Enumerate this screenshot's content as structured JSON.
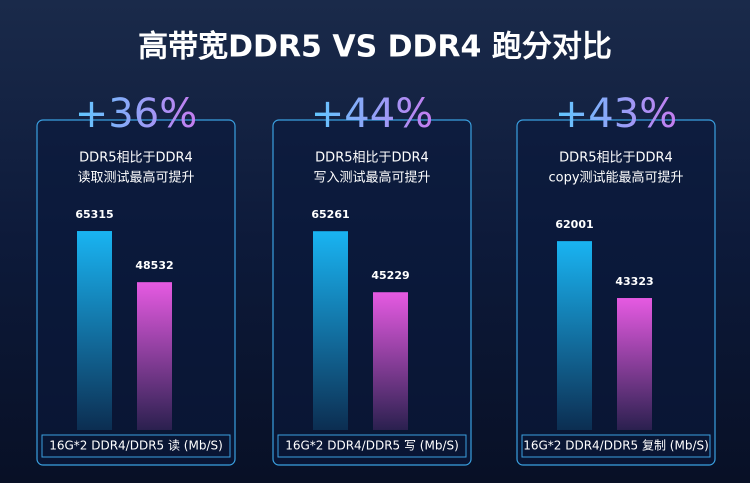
{
  "title": "高带宽DDR5 VS DDR4 跑分对比",
  "chart_data": [
    {
      "type": "bar",
      "headline": "+36%",
      "subtitle": [
        "DDR5相比于DDR4",
        "读取测试最高可提升"
      ],
      "footer": "16G*2 DDR4/DDR5 读 (Mb/S)",
      "values": [
        65315,
        48532
      ],
      "colors": [
        "#19b4f2",
        "#e65ae2"
      ]
    },
    {
      "type": "bar",
      "headline": "+44%",
      "subtitle": [
        "DDR5相比于DDR4",
        "写入测试最高可提升"
      ],
      "footer": "16G*2 DDR4/DDR5 写 (Mb/S)",
      "values": [
        65261,
        45229
      ],
      "colors": [
        "#19b4f2",
        "#e65ae2"
      ]
    },
    {
      "type": "bar",
      "headline": "+43%",
      "subtitle": [
        "DDR5相比于DDR4",
        "copy测试能最高可提升"
      ],
      "footer": "16G*2 DDR4/DDR5 复制 (Mb/S)",
      "values": [
        62001,
        43323
      ],
      "colors": [
        "#19b4f2",
        "#e65ae2"
      ]
    }
  ]
}
